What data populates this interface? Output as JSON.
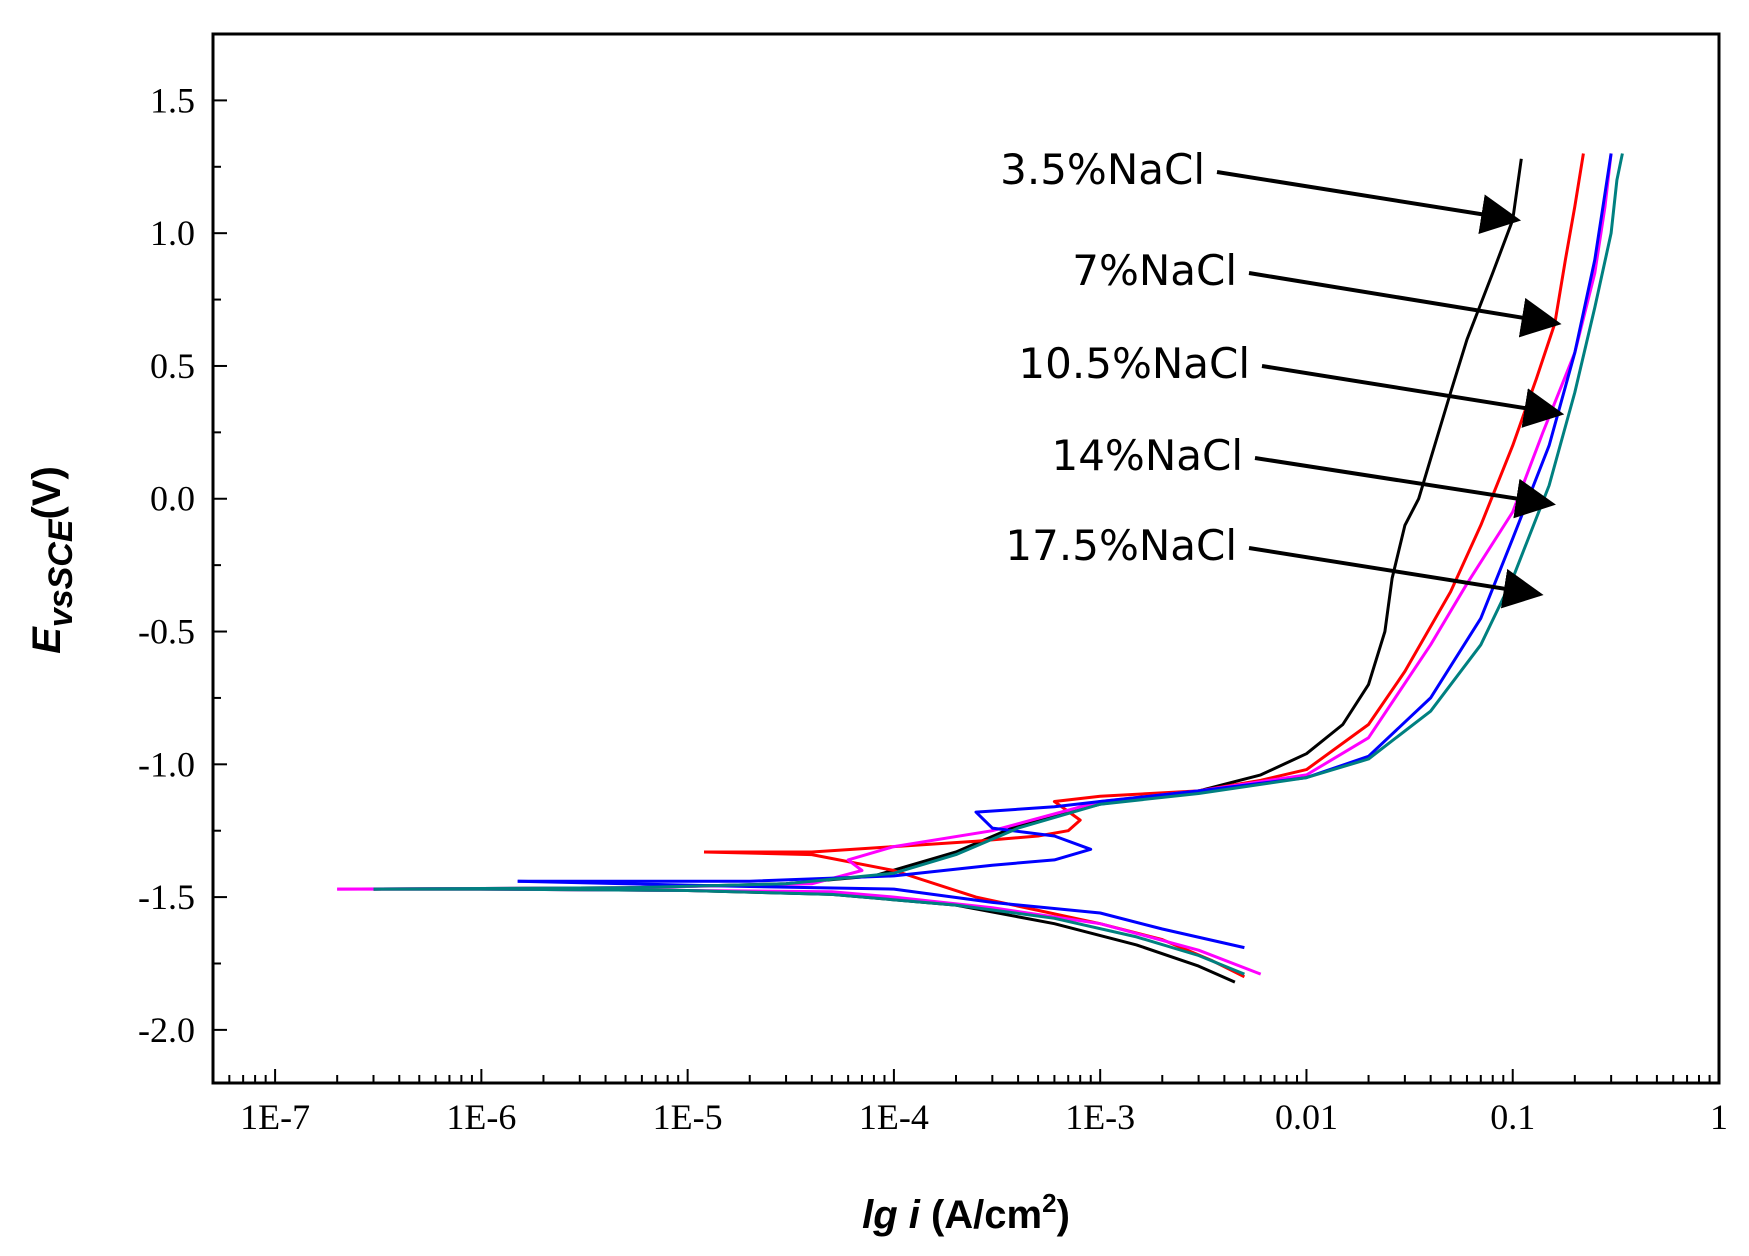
{
  "chart_data": {
    "type": "line",
    "title": "",
    "x_scale": "log",
    "xlim": [
      5e-08,
      1
    ],
    "ylim": [
      -2.2,
      1.75
    ],
    "grid": false,
    "x_ticks": [
      {
        "value": 1e-07,
        "label": "1E-7"
      },
      {
        "value": 1e-06,
        "label": "1E-6"
      },
      {
        "value": 1e-05,
        "label": "1E-5"
      },
      {
        "value": 0.0001,
        "label": "1E-4"
      },
      {
        "value": 0.001,
        "label": "1E-3"
      },
      {
        "value": 0.01,
        "label": "0.01"
      },
      {
        "value": 0.1,
        "label": "0.1"
      },
      {
        "value": 1,
        "label": "1"
      }
    ],
    "y_ticks": [
      {
        "value": 1.5,
        "label": "1.5"
      },
      {
        "value": 1.0,
        "label": "1.0"
      },
      {
        "value": 0.5,
        "label": "0.5"
      },
      {
        "value": 0.0,
        "label": "0.0"
      },
      {
        "value": -0.5,
        "label": "-0.5"
      },
      {
        "value": -1.0,
        "label": "-1.0"
      },
      {
        "value": -1.5,
        "label": "-1.5"
      },
      {
        "value": -2.0,
        "label": "-2.0"
      }
    ],
    "xlabel": {
      "italic": "lg  i",
      "unit": " (A/cm",
      "sup": "2",
      "close": ")"
    },
    "ylabel": {
      "main": "E",
      "sub": "vsSCE",
      "unit": "(V)"
    },
    "series": [
      {
        "name": "3.5%NaCl",
        "color": "#000000",
        "cathodic": [
          [
            3e-07,
            -1.47
          ],
          [
            1e-06,
            -1.47
          ],
          [
            1e-05,
            -1.475
          ],
          [
            5e-05,
            -1.49
          ],
          [
            0.0002,
            -1.53
          ],
          [
            0.0006,
            -1.6
          ],
          [
            0.0015,
            -1.68
          ],
          [
            0.003,
            -1.76
          ],
          [
            0.0045,
            -1.82
          ]
        ],
        "anodic": [
          [
            3e-07,
            -1.47
          ],
          [
            5e-06,
            -1.465
          ],
          [
            3e-05,
            -1.45
          ],
          [
            8e-05,
            -1.42
          ],
          [
            0.0002,
            -1.33
          ],
          [
            0.0004,
            -1.23
          ],
          [
            0.001,
            -1.15
          ],
          [
            0.003,
            -1.1
          ],
          [
            0.006,
            -1.04
          ],
          [
            0.01,
            -0.96
          ],
          [
            0.015,
            -0.85
          ],
          [
            0.02,
            -0.7
          ],
          [
            0.024,
            -0.5
          ],
          [
            0.026,
            -0.3
          ],
          [
            0.03,
            -0.1
          ],
          [
            0.035,
            0.0
          ],
          [
            0.04,
            0.15
          ],
          [
            0.05,
            0.4
          ],
          [
            0.06,
            0.6
          ],
          [
            0.08,
            0.85
          ],
          [
            0.1,
            1.05
          ],
          [
            0.11,
            1.28
          ]
        ]
      },
      {
        "name": "7%NaCl",
        "color": "#ff0000",
        "cathodic": [
          [
            1.2e-05,
            -1.33
          ],
          [
            4e-05,
            -1.34
          ],
          [
            0.0001,
            -1.4
          ],
          [
            0.00025,
            -1.5
          ],
          [
            0.0005,
            -1.55
          ],
          [
            0.001,
            -1.6
          ],
          [
            0.002,
            -1.66
          ],
          [
            0.0035,
            -1.74
          ],
          [
            0.005,
            -1.8
          ]
        ],
        "anodic": [
          [
            1.2e-05,
            -1.33
          ],
          [
            4e-05,
            -1.33
          ],
          [
            0.0001,
            -1.31
          ],
          [
            0.00025,
            -1.29
          ],
          [
            0.0005,
            -1.27
          ],
          [
            0.0007,
            -1.25
          ],
          [
            0.0008,
            -1.21
          ],
          [
            0.0006,
            -1.14
          ],
          [
            0.001,
            -1.12
          ],
          [
            0.003,
            -1.1
          ],
          [
            0.006,
            -1.06
          ],
          [
            0.01,
            -1.02
          ],
          [
            0.02,
            -0.85
          ],
          [
            0.03,
            -0.65
          ],
          [
            0.05,
            -0.35
          ],
          [
            0.07,
            -0.1
          ],
          [
            0.1,
            0.2
          ],
          [
            0.13,
            0.45
          ],
          [
            0.16,
            0.66
          ],
          [
            0.18,
            0.9
          ],
          [
            0.2,
            1.1
          ],
          [
            0.22,
            1.3
          ]
        ]
      },
      {
        "name": "10.5%NaCl",
        "color": "#ff00ff",
        "cathodic": [
          [
            2e-07,
            -1.47
          ],
          [
            1e-06,
            -1.47
          ],
          [
            1e-05,
            -1.475
          ],
          [
            5e-05,
            -1.48
          ],
          [
            0.0001,
            -1.5
          ],
          [
            0.0003,
            -1.54
          ],
          [
            0.001,
            -1.6
          ],
          [
            0.003,
            -1.7
          ],
          [
            0.006,
            -1.79
          ]
        ],
        "anodic": [
          [
            2e-07,
            -1.47
          ],
          [
            5e-06,
            -1.465
          ],
          [
            4e-05,
            -1.45
          ],
          [
            7e-05,
            -1.4
          ],
          [
            6e-05,
            -1.36
          ],
          [
            0.0001,
            -1.31
          ],
          [
            0.0003,
            -1.25
          ],
          [
            0.001,
            -1.14
          ],
          [
            0.003,
            -1.1
          ],
          [
            0.01,
            -1.04
          ],
          [
            0.02,
            -0.9
          ],
          [
            0.04,
            -0.55
          ],
          [
            0.06,
            -0.32
          ],
          [
            0.1,
            -0.05
          ],
          [
            0.14,
            0.25
          ],
          [
            0.2,
            0.55
          ],
          [
            0.25,
            0.85
          ],
          [
            0.28,
            1.1
          ],
          [
            0.3,
            1.3
          ]
        ]
      },
      {
        "name": "14%NaCl",
        "color": "#0000ff",
        "cathodic": [
          [
            1.5e-06,
            -1.44
          ],
          [
            5e-06,
            -1.45
          ],
          [
            2e-05,
            -1.46
          ],
          [
            0.0001,
            -1.47
          ],
          [
            0.0003,
            -1.52
          ],
          [
            0.001,
            -1.56
          ],
          [
            0.002,
            -1.62
          ],
          [
            0.005,
            -1.69
          ]
        ],
        "anodic": [
          [
            1.5e-06,
            -1.44
          ],
          [
            2e-05,
            -1.44
          ],
          [
            0.0001,
            -1.42
          ],
          [
            0.0003,
            -1.38
          ],
          [
            0.0006,
            -1.36
          ],
          [
            0.0009,
            -1.32
          ],
          [
            0.0006,
            -1.27
          ],
          [
            0.0003,
            -1.24
          ],
          [
            0.00025,
            -1.18
          ],
          [
            0.0006,
            -1.16
          ],
          [
            0.001,
            -1.14
          ],
          [
            0.003,
            -1.1
          ],
          [
            0.01,
            -1.05
          ],
          [
            0.02,
            -0.97
          ],
          [
            0.04,
            -0.75
          ],
          [
            0.07,
            -0.45
          ],
          [
            0.1,
            -0.15
          ],
          [
            0.15,
            0.2
          ],
          [
            0.2,
            0.55
          ],
          [
            0.25,
            0.9
          ],
          [
            0.28,
            1.15
          ],
          [
            0.3,
            1.3
          ]
        ]
      },
      {
        "name": "17.5%NaCl",
        "color": "#008080",
        "cathodic": [
          [
            3e-07,
            -1.47
          ],
          [
            1e-06,
            -1.47
          ],
          [
            1e-05,
            -1.475
          ],
          [
            5e-05,
            -1.49
          ],
          [
            0.0002,
            -1.53
          ],
          [
            0.0006,
            -1.58
          ],
          [
            0.0015,
            -1.65
          ],
          [
            0.003,
            -1.72
          ],
          [
            0.005,
            -1.79
          ]
        ],
        "anodic": [
          [
            3e-07,
            -1.47
          ],
          [
            5e-06,
            -1.465
          ],
          [
            3e-05,
            -1.45
          ],
          [
            0.0001,
            -1.41
          ],
          [
            0.0002,
            -1.34
          ],
          [
            0.0004,
            -1.24
          ],
          [
            0.001,
            -1.15
          ],
          [
            0.003,
            -1.11
          ],
          [
            0.01,
            -1.05
          ],
          [
            0.02,
            -0.98
          ],
          [
            0.04,
            -0.8
          ],
          [
            0.07,
            -0.55
          ],
          [
            0.1,
            -0.3
          ],
          [
            0.15,
            0.05
          ],
          [
            0.2,
            0.4
          ],
          [
            0.25,
            0.72
          ],
          [
            0.3,
            1.0
          ],
          [
            0.32,
            1.2
          ],
          [
            0.34,
            1.3
          ]
        ]
      }
    ],
    "annotations": [
      {
        "text": "3.5%NaCl",
        "series": "3.5%NaCl",
        "arrow_to": [
          0.105,
          1.05
        ]
      },
      {
        "text": "7%NaCl",
        "series": "7%NaCl",
        "arrow_to": [
          0.165,
          0.66
        ]
      },
      {
        "text": "10.5%NaCl",
        "series": "10.5%NaCl",
        "arrow_to": [
          0.17,
          0.32
        ]
      },
      {
        "text": "14%NaCl",
        "series": "14%NaCl",
        "arrow_to": [
          0.155,
          -0.02
        ]
      },
      {
        "text": "17.5%NaCl",
        "series": "17.5%NaCl",
        "arrow_to": [
          0.135,
          -0.36
        ]
      }
    ]
  }
}
